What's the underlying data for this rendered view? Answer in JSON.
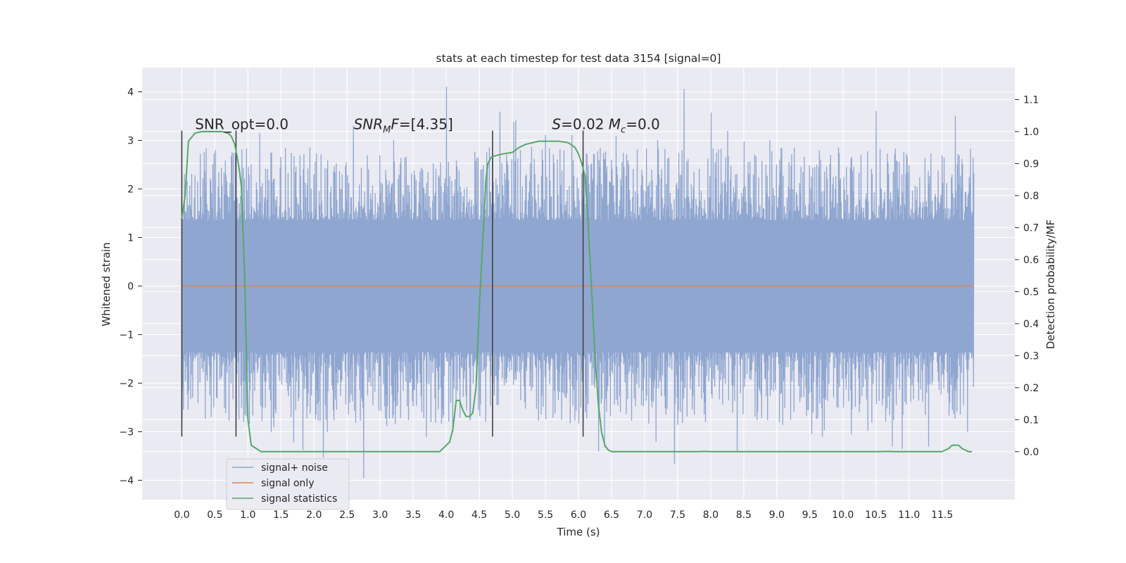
{
  "chart_data": {
    "type": "line",
    "title": "stats at each timestep for test data 3154 [signal=0]",
    "xlabel": "Time (s)",
    "ylabel_left": "Whitened strain",
    "ylabel_right": "Detection probability/MF",
    "xlim": [
      -0.6,
      12.6
    ],
    "ylim_left": [
      -4.4,
      4.5
    ],
    "ylim_right": [
      -0.15,
      1.2
    ],
    "x_ticks": [
      "0.0",
      "0.5",
      "1.0",
      "1.5",
      "2.0",
      "2.5",
      "3.0",
      "3.5",
      "4.0",
      "4.5",
      "5.0",
      "5.5",
      "6.0",
      "6.5",
      "7.0",
      "7.5",
      "8.0",
      "8.5",
      "9.0",
      "9.5",
      "10.0",
      "10.5",
      "11.0",
      "11.5"
    ],
    "y_left_ticks": [
      "−4",
      "−3",
      "−2",
      "−1",
      "0",
      "1",
      "2",
      "3",
      "4"
    ],
    "y_right_ticks": [
      "0.0",
      "0.1",
      "0.2",
      "0.3",
      "0.4",
      "0.5",
      "0.6",
      "0.7",
      "0.8",
      "0.9",
      "1.0",
      "1.1"
    ],
    "grid": true,
    "legend_placement": "lower-left",
    "series": [
      {
        "name": "signal+ noise",
        "color": "#8fa6d0",
        "kind": "noise",
        "x_range": [
          0.0,
          11.98
        ],
        "amplitude_core": 1.35,
        "peaks": [
          {
            "x": 0.15,
            "y": 2.3
          },
          {
            "x": 0.9,
            "y": -2.5
          },
          {
            "x": 1.3,
            "y": 2.4
          },
          {
            "x": 1.35,
            "y": -3.0
          },
          {
            "x": 2.2,
            "y": -3.0
          },
          {
            "x": 2.6,
            "y": 3.3
          },
          {
            "x": 2.75,
            "y": -3.95
          },
          {
            "x": 3.2,
            "y": 3.0
          },
          {
            "x": 3.7,
            "y": -3.1
          },
          {
            "x": 4.0,
            "y": 4.1
          },
          {
            "x": 4.1,
            "y": -3.0
          },
          {
            "x": 5.5,
            "y": 3.1
          },
          {
            "x": 5.9,
            "y": 3.1
          },
          {
            "x": 6.3,
            "y": -3.4
          },
          {
            "x": 7.2,
            "y": 3.0
          },
          {
            "x": 7.45,
            "y": -3.65
          },
          {
            "x": 7.6,
            "y": 4.05
          },
          {
            "x": 8.4,
            "y": -3.4
          },
          {
            "x": 8.9,
            "y": 3.0
          },
          {
            "x": 10.5,
            "y": 3.6
          },
          {
            "x": 10.75,
            "y": -3.3
          },
          {
            "x": 10.9,
            "y": -3.35
          },
          {
            "x": 11.3,
            "y": -3.3
          },
          {
            "x": 11.7,
            "y": 3.5
          }
        ]
      },
      {
        "name": "signal only",
        "color": "#dd8452",
        "kind": "line",
        "axis": "left",
        "x": [
          0.0,
          11.98
        ],
        "y": [
          0.0,
          0.0
        ]
      },
      {
        "name": "signal statistics",
        "color": "#55a868",
        "kind": "line",
        "axis": "right",
        "x": [
          0.0,
          0.05,
          0.1,
          0.2,
          0.3,
          0.4,
          0.5,
          0.6,
          0.7,
          0.75,
          0.8,
          0.83,
          0.87,
          0.9,
          0.95,
          1.0,
          1.05,
          1.2,
          1.5,
          1.8,
          2.0,
          2.5,
          3.0,
          3.5,
          3.9,
          4.05,
          4.1,
          4.15,
          4.2,
          4.25,
          4.3,
          4.35,
          4.4,
          4.45,
          4.5,
          4.55,
          4.6,
          4.63,
          4.68,
          4.75,
          4.85,
          5.0,
          5.1,
          5.2,
          5.3,
          5.4,
          5.5,
          5.7,
          5.85,
          5.95,
          6.0,
          6.05,
          6.1,
          6.15,
          6.2,
          6.25,
          6.3,
          6.35,
          6.4,
          6.45,
          6.5,
          6.55,
          6.6,
          6.7,
          6.9,
          7.2,
          7.5,
          7.8,
          7.9,
          8.0,
          8.5,
          9.0,
          9.5,
          10.0,
          10.5,
          10.7,
          10.75,
          10.8,
          10.9,
          11.0,
          11.5,
          11.6,
          11.65,
          11.7,
          11.75,
          11.8,
          11.85,
          11.9,
          11.95
        ],
        "y": [
          0.73,
          0.8,
          0.97,
          0.995,
          1.0,
          1.0,
          1.0,
          1.0,
          0.995,
          0.985,
          0.96,
          0.93,
          0.88,
          0.83,
          0.55,
          0.1,
          0.02,
          0.0,
          0.0,
          0.0,
          0.0,
          0.0,
          0.0,
          0.0,
          0.0,
          0.03,
          0.07,
          0.16,
          0.16,
          0.13,
          0.11,
          0.11,
          0.12,
          0.2,
          0.45,
          0.65,
          0.85,
          0.9,
          0.92,
          0.925,
          0.93,
          0.935,
          0.95,
          0.96,
          0.965,
          0.97,
          0.97,
          0.97,
          0.965,
          0.95,
          0.93,
          0.9,
          0.86,
          0.7,
          0.5,
          0.3,
          0.15,
          0.06,
          0.02,
          0.005,
          0.0,
          0.0,
          0.0,
          0.0,
          0.0,
          0.0,
          0.0,
          0.0,
          0.001,
          0.0,
          0.0,
          0.0,
          0.0,
          0.0,
          0.0,
          0.001,
          0.0,
          0.0,
          0.0,
          0.0,
          0.0,
          0.01,
          0.02,
          0.02,
          0.02,
          0.01,
          0.005,
          0.0,
          0.0
        ]
      }
    ],
    "vertical_lines": [
      {
        "x": 0.0,
        "y_range": [
          -3.1,
          3.2
        ]
      },
      {
        "x": 0.82,
        "y_range": [
          -3.1,
          3.2
        ]
      },
      {
        "x": 4.7,
        "y_range": [
          -3.1,
          3.2
        ]
      },
      {
        "x": 6.07,
        "y_range": [
          -3.1,
          3.2
        ]
      }
    ],
    "annotations": [
      {
        "id": "snr-opt",
        "x": 0.2,
        "y": 3.2,
        "parts": [
          {
            "t": "SNR_opt=0.0"
          }
        ]
      },
      {
        "id": "snr-mf",
        "x": 2.6,
        "y": 3.2,
        "parts": [
          {
            "t": "SNR",
            "i": true
          },
          {
            "t": "M",
            "i": true,
            "sub": true
          },
          {
            "t": "F",
            "i": true
          },
          {
            "t": "=[4.35]"
          }
        ]
      },
      {
        "id": "s-mc",
        "x": 5.6,
        "y": 3.2,
        "parts": [
          {
            "t": "S",
            "i": true
          },
          {
            "t": "=0.02   "
          },
          {
            "t": "M",
            "i": true
          },
          {
            "t": "c",
            "i": true,
            "sub": true
          },
          {
            "t": "=0.0"
          }
        ]
      }
    ],
    "colors": {
      "plot_background": "#eaeaf2",
      "grid": "#ffffff",
      "marker_lines": "#404040"
    }
  }
}
